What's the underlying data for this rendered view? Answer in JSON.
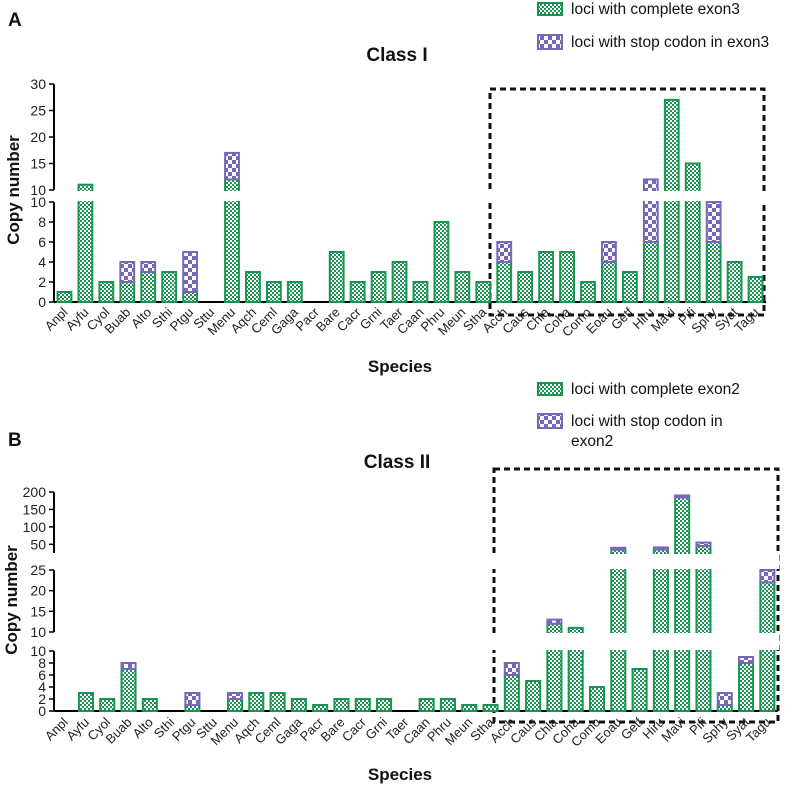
{
  "colors": {
    "complete": "#1a9450",
    "stop": "#7667b8",
    "axis": "#000000"
  },
  "chart_data": [
    {
      "panel": "A",
      "type": "bar",
      "title": "Class I",
      "xlabel": "Species",
      "ylabel": "Copy number",
      "legend": [
        "loci with complete exon3",
        "loci with stop codon in exon3"
      ],
      "legend_placement": "top-right",
      "highlight_box": "Acch to Tagu (dashed)",
      "categories": [
        "Anpl",
        "Ayfu",
        "Cyol",
        "Buab",
        "Alto",
        "Sthi",
        "Ptgu",
        "Sttu",
        "Menu",
        "Aqch",
        "Ceml",
        "Gaga",
        "Pacr",
        "Bare",
        "Cacr",
        "Grni",
        "Taer",
        "Caan",
        "Phru",
        "Meun",
        "Stha",
        "Acch",
        "Caus",
        "Chla",
        "Coha",
        "Como",
        "Eoau",
        "Getf",
        "Hiru",
        "Mavi",
        "Pifi",
        "Sphy",
        "Syat",
        "Tagu"
      ],
      "series": [
        {
          "name": "loci with complete exon3",
          "values": [
            1,
            11,
            2,
            2,
            3,
            3,
            1,
            0,
            12,
            3,
            2,
            2,
            0,
            5,
            2,
            3,
            4,
            2,
            8,
            3,
            2,
            4,
            3,
            5,
            5,
            2,
            4,
            3,
            6,
            27,
            15,
            6,
            4,
            2.5
          ]
        },
        {
          "name": "loci with stop codon in exon3",
          "values": [
            0,
            0,
            0,
            2,
            1,
            0,
            4,
            0,
            5,
            0,
            0,
            0,
            0,
            0,
            0,
            0,
            0,
            0,
            0,
            0,
            0,
            2,
            0,
            0,
            0,
            0,
            2,
            0,
            6,
            0,
            0,
            4,
            0,
            0
          ]
        }
      ],
      "y_segments": [
        {
          "range": [
            0,
            10
          ],
          "ticks": [
            0,
            2,
            4,
            6,
            8,
            10
          ]
        },
        {
          "range": [
            10,
            30
          ],
          "ticks": [
            10,
            15,
            20,
            25,
            30
          ]
        }
      ]
    },
    {
      "panel": "B",
      "type": "bar",
      "title": "Class II",
      "xlabel": "Species",
      "ylabel": "Copy number",
      "legend": [
        "loci with complete exon2",
        "loci with stop codon in",
        "exon2"
      ],
      "legend_placement": "top-right",
      "highlight_box": "Acch to Tagu (dashed)",
      "categories": [
        "Anpl",
        "Ayfu",
        "Cyol",
        "Buab",
        "Alto",
        "Sthi",
        "Ptgu",
        "Sttu",
        "Menu",
        "Aqch",
        "Ceml",
        "Gaga",
        "Pacr",
        "Bare",
        "Cacr",
        "Grni",
        "Taer",
        "Caan",
        "Phru",
        "Meun",
        "Stha",
        "Acch",
        "Caus",
        "Chla",
        "Coha",
        "Como",
        "Eoau",
        "Getf",
        "Hiru",
        "Mavi",
        "Pifi",
        "Sphy",
        "Syat",
        "Tagu"
      ],
      "series": [
        {
          "name": "loci with complete exon2",
          "values": [
            0,
            3,
            2,
            7,
            2,
            0,
            1,
            0,
            2,
            3,
            3,
            2,
            1,
            2,
            2,
            2,
            0,
            2,
            2,
            1,
            1,
            6,
            5,
            12,
            11,
            4,
            35,
            7,
            35,
            185,
            45,
            1,
            8,
            22
          ]
        },
        {
          "name": "loci with stop codon in exon2",
          "values": [
            0,
            0,
            0,
            1,
            0,
            0,
            2,
            0,
            1,
            0,
            0,
            0,
            0,
            0,
            0,
            0,
            0,
            0,
            0,
            0,
            0,
            2,
            0,
            1,
            0,
            0,
            5,
            0,
            6,
            5,
            10,
            2,
            1,
            3
          ]
        }
      ],
      "y_segments": [
        {
          "range": [
            0,
            10
          ],
          "ticks": [
            0,
            2,
            4,
            6,
            8,
            10
          ]
        },
        {
          "range": [
            10,
            25
          ],
          "ticks": [
            10,
            15,
            20,
            25
          ]
        },
        {
          "range": [
            25,
            200
          ],
          "ticks": [
            50,
            100,
            150,
            200
          ]
        }
      ]
    }
  ]
}
